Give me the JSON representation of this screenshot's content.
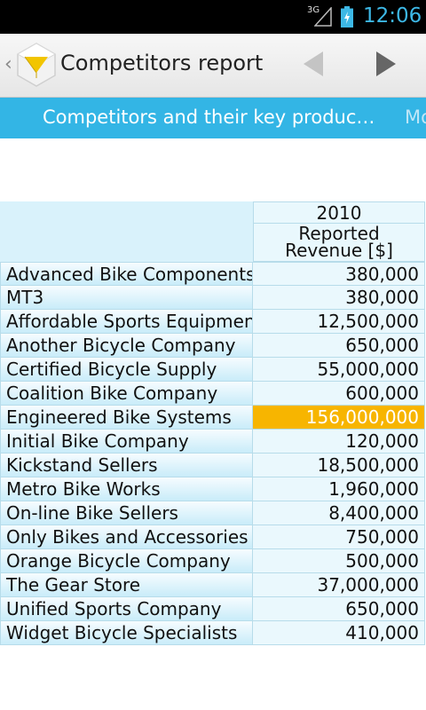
{
  "status_bar": {
    "network": "3G",
    "time": "12:06",
    "icons": [
      "signal-icon",
      "battery-charging-icon"
    ]
  },
  "action_bar": {
    "title": "Competitors report",
    "icons": [
      "up-chevron-icon",
      "app-logo-icon",
      "previous-arrow-icon",
      "next-arrow-icon"
    ]
  },
  "tabs": [
    {
      "label": "Competitors and their key produc…"
    },
    {
      "label": "Mo"
    }
  ],
  "table": {
    "year_header": "2010",
    "revenue_header_line1": "Reported",
    "revenue_header_line2": "Revenue [$]",
    "rows": [
      {
        "name": "Advanced Bike Components",
        "value": "380,000"
      },
      {
        "name": "MT3",
        "value": "380,000"
      },
      {
        "name": "Affordable Sports Equipment",
        "value": "12,500,000"
      },
      {
        "name": "Another Bicycle Company",
        "value": "650,000"
      },
      {
        "name": "Certified Bicycle Supply",
        "value": "55,000,000"
      },
      {
        "name": "Coalition Bike Company",
        "value": "600,000"
      },
      {
        "name": "Engineered Bike Systems",
        "value": "156,000,000",
        "highlighted": true
      },
      {
        "name": "Initial Bike Company",
        "value": "120,000"
      },
      {
        "name": "Kickstand Sellers",
        "value": "18,500,000"
      },
      {
        "name": "Metro Bike Works",
        "value": "1,960,000"
      },
      {
        "name": "On-line Bike Sellers",
        "value": "8,400,000"
      },
      {
        "name": "Only Bikes and Accessories",
        "value": "750,000"
      },
      {
        "name": "Orange Bicycle Company",
        "value": "500,000"
      },
      {
        "name": "The Gear Store",
        "value": "37,000,000"
      },
      {
        "name": "Unified Sports Company",
        "value": "650,000"
      },
      {
        "name": "Widget Bicycle Specialists",
        "value": "410,000"
      }
    ]
  },
  "colors": {
    "accent": "#33b5e5",
    "highlight": "#f7b500",
    "clock": "#3db8e6"
  }
}
